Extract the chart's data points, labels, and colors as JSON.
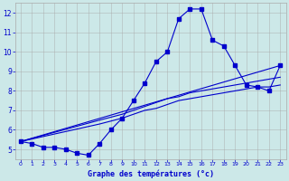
{
  "title": "Graphe des températures (°c)",
  "bg_color": "#cce8e8",
  "line_color": "#0000cc",
  "grid_color": "#aaaaaa",
  "xlim": [
    -0.5,
    23.5
  ],
  "ylim": [
    4.5,
    12.5
  ],
  "xticks": [
    0,
    1,
    2,
    3,
    4,
    5,
    6,
    7,
    8,
    9,
    10,
    11,
    12,
    13,
    14,
    15,
    16,
    17,
    18,
    19,
    20,
    21,
    22,
    23
  ],
  "yticks": [
    5,
    6,
    7,
    8,
    9,
    10,
    11,
    12
  ],
  "main_x": [
    0,
    1,
    2,
    3,
    4,
    5,
    6,
    7,
    8,
    9,
    10,
    11,
    12,
    13,
    14,
    15,
    16,
    17,
    18,
    19,
    20,
    21,
    22,
    23
  ],
  "main_y": [
    5.4,
    5.3,
    5.1,
    5.1,
    5.0,
    4.8,
    4.7,
    5.3,
    6.0,
    6.6,
    7.5,
    8.4,
    9.5,
    10.0,
    11.7,
    12.2,
    12.2,
    10.6,
    10.3,
    9.3,
    8.3,
    8.2,
    8.0,
    9.3
  ],
  "line1_x": [
    0,
    23
  ],
  "line1_y": [
    5.4,
    9.3
  ],
  "line2_x": [
    0,
    7,
    9,
    10,
    11,
    12,
    13,
    14,
    15,
    16,
    17,
    18,
    19,
    20,
    21,
    22,
    23
  ],
  "line2_y": [
    5.4,
    6.5,
    6.8,
    7.0,
    7.2,
    7.4,
    7.6,
    7.7,
    7.9,
    8.0,
    8.1,
    8.2,
    8.3,
    8.4,
    8.5,
    8.6,
    8.7
  ],
  "line3_x": [
    0,
    7,
    9,
    10,
    11,
    12,
    13,
    14,
    15,
    16,
    17,
    18,
    19,
    20,
    21,
    22,
    23
  ],
  "line3_y": [
    5.4,
    6.3,
    6.6,
    6.8,
    7.0,
    7.1,
    7.3,
    7.5,
    7.6,
    7.7,
    7.8,
    7.9,
    8.0,
    8.1,
    8.2,
    8.2,
    8.3
  ]
}
